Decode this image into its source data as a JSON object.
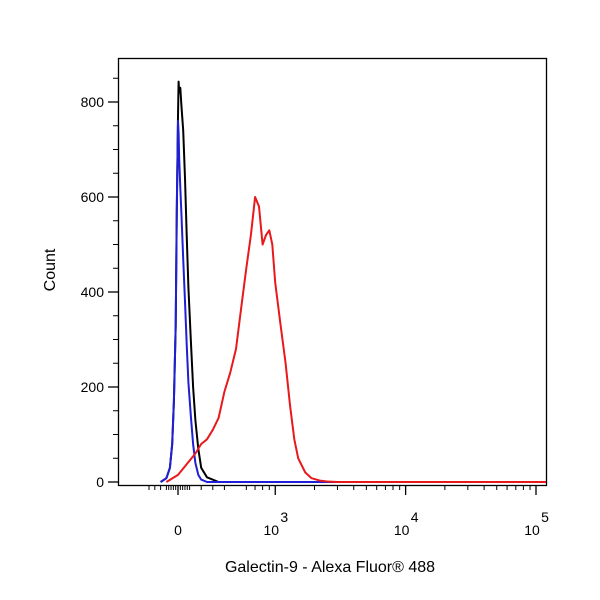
{
  "chart_data": {
    "type": "line",
    "title": "",
    "xlabel": "Galectin-9 - Alexa Fluor® 488",
    "ylabel": "Count",
    "x_scale": "biexponential",
    "xlim": [
      -300,
      200000
    ],
    "ylim": [
      0,
      900
    ],
    "grid": false,
    "legend": "none",
    "x_ticks": [
      {
        "value": 0,
        "label": "0"
      },
      {
        "value": 1000,
        "label": "10",
        "exp": "3"
      },
      {
        "value": 10000,
        "label": "10",
        "exp": "4"
      },
      {
        "value": 100000,
        "label": "10",
        "exp": "5"
      }
    ],
    "y_ticks": [
      {
        "value": 0,
        "label": "0"
      },
      {
        "value": 200,
        "label": "200"
      },
      {
        "value": 400,
        "label": "400"
      },
      {
        "value": 600,
        "label": "600"
      },
      {
        "value": 800,
        "label": "800"
      }
    ],
    "series": [
      {
        "color": "#000000",
        "x": [
          -150,
          -100,
          -70,
          -50,
          -35,
          -20,
          -10,
          0,
          5,
          10,
          20,
          30,
          45,
          60,
          75,
          90,
          110,
          130,
          150,
          175,
          200,
          250,
          350
        ],
        "y": [
          0,
          8,
          30,
          80,
          170,
          330,
          570,
          770,
          843,
          820,
          830,
          790,
          740,
          640,
          520,
          410,
          300,
          200,
          130,
          70,
          30,
          10,
          0
        ]
      },
      {
        "color": "#1f1fd6",
        "x": [
          -150,
          -100,
          -70,
          -50,
          -35,
          -20,
          -10,
          0,
          5,
          10,
          20,
          30,
          45,
          60,
          75,
          90,
          110,
          130,
          150,
          175,
          200,
          250
        ],
        "y": [
          0,
          8,
          30,
          80,
          170,
          330,
          580,
          760,
          735,
          680,
          620,
          560,
          470,
          380,
          290,
          210,
          140,
          80,
          40,
          15,
          5,
          0
        ]
      },
      {
        "color": "#e8191d",
        "x": [
          -100,
          0,
          50,
          100,
          150,
          200,
          250,
          300,
          350,
          400,
          450,
          500,
          550,
          600,
          650,
          700,
          750,
          800,
          850,
          900,
          950,
          1000,
          1100,
          1200,
          1300,
          1400,
          1500,
          1700,
          1900,
          2200,
          2500,
          3000,
          3500,
          4000,
          5000,
          7000
        ],
        "y": [
          0,
          15,
          30,
          45,
          60,
          80,
          90,
          110,
          135,
          190,
          230,
          280,
          370,
          450,
          520,
          600,
          580,
          500,
          520,
          530,
          500,
          420,
          330,
          250,
          160,
          90,
          50,
          20,
          8,
          3,
          1,
          0,
          0,
          0,
          0,
          0
        ]
      }
    ]
  }
}
